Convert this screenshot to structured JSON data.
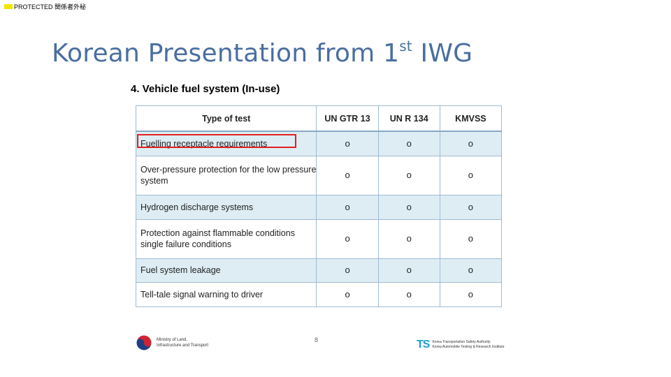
{
  "marking": {
    "label": "PROTECTED 関係者外秘",
    "swatch_color": "#f2e600"
  },
  "slide": {
    "title_main": "Korean Presentation from 1",
    "title_sup": "st",
    "title_end": " IWG",
    "section_heading": "4. Vehicle fuel system (In-use)",
    "page_number": "8"
  },
  "table": {
    "headers": [
      "Type of test",
      "UN GTR 13",
      "UN R 134",
      "KMVSS"
    ],
    "rows": [
      {
        "test": "Fuelling receptacle requirements",
        "marks": [
          "o",
          "o",
          "o"
        ],
        "highlighted": true
      },
      {
        "test": "Over-pressure protection for the low pressure system",
        "marks": [
          "o",
          "o",
          "o"
        ]
      },
      {
        "test": "Hydrogen discharge systems",
        "marks": [
          "o",
          "o",
          "o"
        ]
      },
      {
        "test": "Protection against flammable conditions single failure conditions",
        "marks": [
          "o",
          "o",
          "o"
        ]
      },
      {
        "test": "Fuel system leakage",
        "marks": [
          "o",
          "o",
          "o"
        ]
      },
      {
        "test": "Tell-tale signal warning to driver",
        "marks": [
          "o",
          "o",
          "o"
        ]
      }
    ],
    "highlight_color": "#e02020"
  },
  "footer": {
    "ministry_line1": "Ministry of Land,",
    "ministry_line2": "Infrastructure and Transport",
    "ts_letters": "TS",
    "ts_line1": "Korea Transportation Safety Authority",
    "ts_line2": "Korea Automobile Testing & Research Institute"
  }
}
